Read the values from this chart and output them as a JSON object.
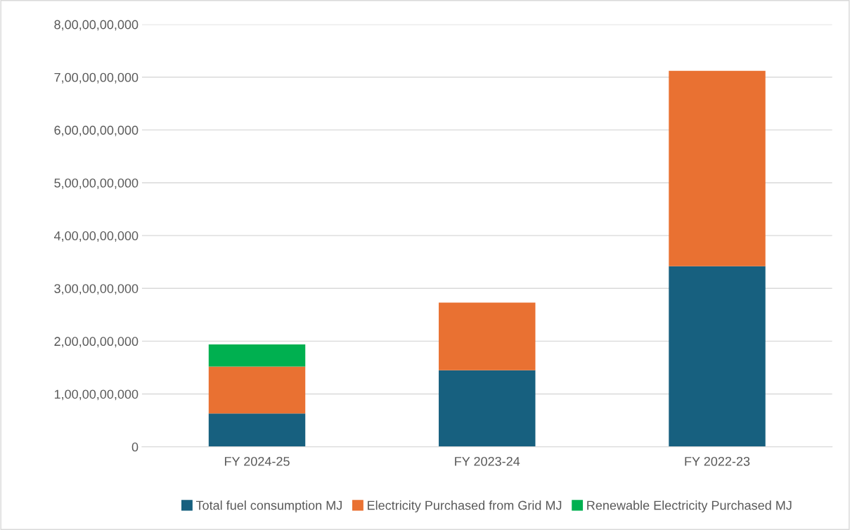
{
  "chart_data": {
    "type": "bar",
    "stacked": true,
    "categories": [
      "FY 2024-25",
      "FY 2023-24",
      "FY 2022-23"
    ],
    "series": [
      {
        "name": "Total fuel consumption MJ",
        "color": "#17607f",
        "values": [
          630000000,
          1450000000,
          3420000000
        ]
      },
      {
        "name": "Electricity Purchased from Grid MJ",
        "color": "#e97132",
        "values": [
          890000000,
          1280000000,
          3700000000
        ]
      },
      {
        "name": "Renewable Electricity Purchased MJ",
        "color": "#00b050",
        "values": [
          420000000,
          null,
          null
        ]
      }
    ],
    "ylim": [
      0,
      8000000000
    ],
    "yticks": [
      {
        "value": 0,
        "label": "0"
      },
      {
        "value": 1000000000,
        "label": "1,00,00,00,000"
      },
      {
        "value": 2000000000,
        "label": "2,00,00,00,000"
      },
      {
        "value": 3000000000,
        "label": "3,00,00,00,000"
      },
      {
        "value": 4000000000,
        "label": "4,00,00,00,000"
      },
      {
        "value": 5000000000,
        "label": "5,00,00,00,000"
      },
      {
        "value": 6000000000,
        "label": "6,00,00,00,000"
      },
      {
        "value": 7000000000,
        "label": "7,00,00,00,000"
      },
      {
        "value": 8000000000,
        "label": "8,00,00,00,000"
      }
    ],
    "grid": "y",
    "legend": "bottom"
  }
}
